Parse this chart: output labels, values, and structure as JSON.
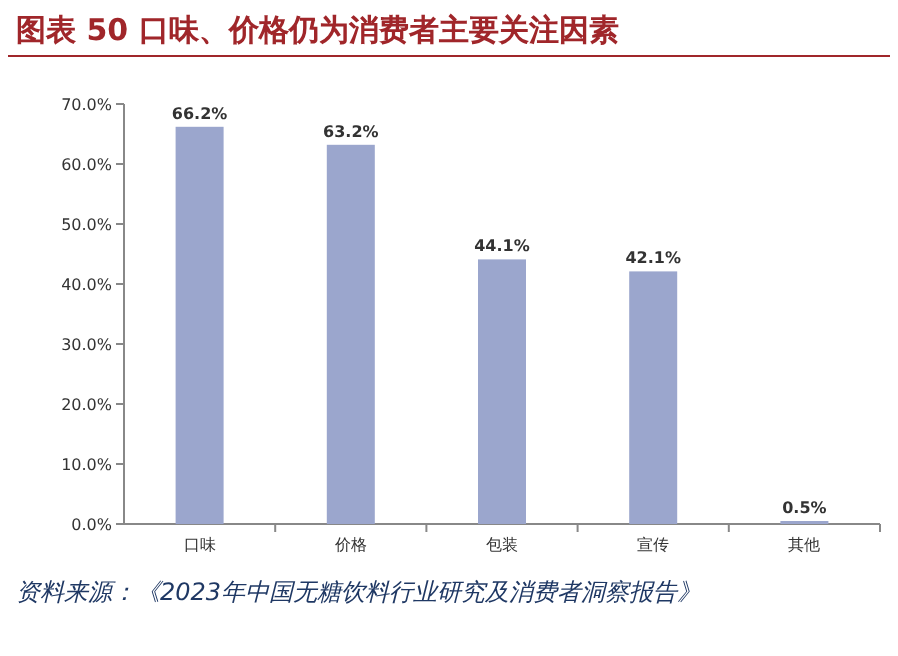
{
  "chart_data": {
    "type": "bar",
    "title": "图表 50 口味、价格仍为消费者主要关注因素",
    "categories": [
      "口味",
      "价格",
      "包装",
      "宣传",
      "其他"
    ],
    "values": [
      66.2,
      63.2,
      44.1,
      42.1,
      0.5
    ],
    "value_labels": [
      "66.2%",
      "63.2%",
      "44.1%",
      "42.1%",
      "0.5%"
    ],
    "color": "#9ba6cd",
    "ylim": [
      0,
      70
    ],
    "yticks": [
      {
        "value": 0,
        "label": "0.0%"
      },
      {
        "value": 10,
        "label": "10.0%"
      },
      {
        "value": 20,
        "label": "20.0%"
      },
      {
        "value": 30,
        "label": "30.0%"
      },
      {
        "value": 40,
        "label": "40.0%"
      },
      {
        "value": 50,
        "label": "50.0%"
      },
      {
        "value": 60,
        "label": "60.0%"
      },
      {
        "value": 70,
        "label": "70.0%"
      }
    ],
    "annotations": [
      "资料来源：《2023年中国无糖饮料行业研究及消费者洞察报告》"
    ]
  }
}
